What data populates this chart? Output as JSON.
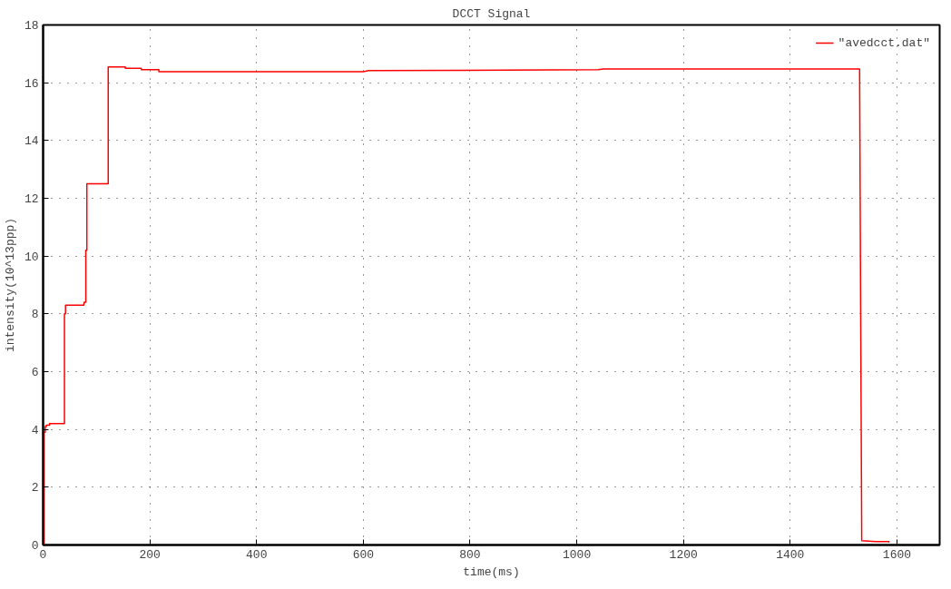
{
  "chart_data": {
    "type": "line",
    "title": "DCCT Signal",
    "xlabel": "time(ms)",
    "ylabel": "intensity(10^13ppp)",
    "xlim": [
      0,
      1680
    ],
    "ylim": [
      0,
      18
    ],
    "xticks": [
      0,
      200,
      400,
      600,
      800,
      1000,
      1200,
      1400,
      1600
    ],
    "yticks": [
      0,
      2,
      4,
      6,
      8,
      10,
      12,
      14,
      16,
      18
    ],
    "grid": true,
    "legend": "top right",
    "line_style": "solid",
    "series": [
      {
        "name": "\"avedcct.dat\"",
        "color": "#ff0000",
        "x": [
          2,
          2,
          4,
          4,
          6,
          6,
          12,
          12,
          40,
          40,
          42,
          42,
          76,
          77,
          80,
          80,
          82,
          82,
          122,
          122,
          154,
          154,
          184,
          184,
          217,
          217,
          600,
          610,
          620,
          1040,
          1050,
          1100,
          1530,
          1532,
          1534,
          1560,
          1585,
          1585,
          1586
        ],
        "values": [
          0,
          3.9,
          3.9,
          4.1,
          4.1,
          4.15,
          4.15,
          4.2,
          4.2,
          8.0,
          8.0,
          8.3,
          8.3,
          8.4,
          8.4,
          10.2,
          10.2,
          12.5,
          12.5,
          16.55,
          16.55,
          16.5,
          16.5,
          16.45,
          16.45,
          16.38,
          16.38,
          16.42,
          16.42,
          16.45,
          16.48,
          16.48,
          16.48,
          8,
          0.15,
          0.12,
          0.12,
          0.1,
          0.1
        ]
      }
    ]
  }
}
